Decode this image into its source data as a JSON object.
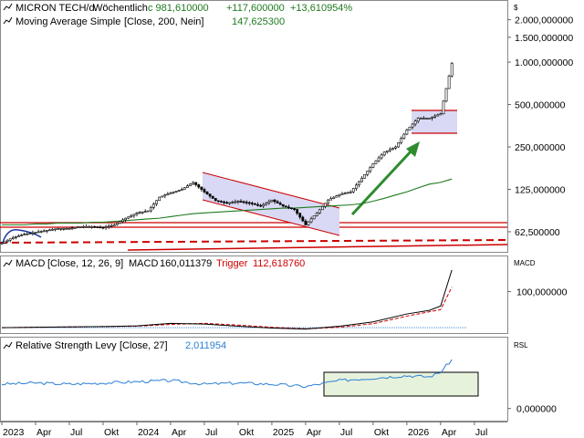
{
  "price_panel": {
    "title": "MICRON TECH/d",
    "interval": "Wöchentlich",
    "close_label": "c 981,610000",
    "change_abs": "+117,600000",
    "change_pct": "+13,610954%",
    "ma_label": "Moving Average Simple",
    "ma_params": "[Close, 200, Nein]",
    "ma_value": "147,625300",
    "axis_unit": "$"
  },
  "macd_panel": {
    "label": "MACD",
    "params": "[Close, 12, 26, 9]",
    "macd_label": "MACD",
    "macd_value": "160,011379",
    "trigger_label": "Trigger",
    "trigger_value": "112,618760",
    "axis_unit": "MACD"
  },
  "rsl_panel": {
    "label": "Relative Strength Levy",
    "params": "[Close, 27]",
    "value": "2,011954",
    "axis_unit": "RSL"
  },
  "x_ticks": [
    "2023",
    "Apr",
    "Jul",
    "Okt",
    "2024",
    "Apr",
    "Jul",
    "Okt",
    "2025",
    "Apr",
    "Jul",
    "Okt",
    "2026",
    "Apr",
    "Jul"
  ],
  "colors": {
    "price": "#000000",
    "ma": "#1e7a1e",
    "macd": "#000000",
    "trigger": "#cc0000",
    "rsl": "#2a7fd4",
    "channel": "#cc0000",
    "arrow": "#2e8b2e",
    "box_fill": "#d9d9f5",
    "rsl_box_fill": "#e6f2dc"
  },
  "chart_data": [
    {
      "type": "line",
      "name": "MICRON TECH weekly close (log scale)",
      "yscale": "log",
      "ylim": [
        45,
        2600
      ],
      "y_ticks": [
        {
          "value": 2000,
          "label": "2.000,000000"
        },
        {
          "value": 1500,
          "label": "1.500,000000"
        },
        {
          "value": 1000,
          "label": "1.000,000000"
        },
        {
          "value": 500,
          "label": "500,000000"
        },
        {
          "value": 250,
          "label": "250,000000"
        },
        {
          "value": 125,
          "label": "125,000000"
        },
        {
          "value": 62.5,
          "label": "62,500000"
        }
      ],
      "x": [
        "2023-01",
        "2023-02",
        "2023-03",
        "2023-04",
        "2023-05",
        "2023-06",
        "2023-07",
        "2023-08",
        "2023-09",
        "2023-10",
        "2023-11",
        "2023-12",
        "2024-01",
        "2024-02",
        "2024-03",
        "2024-04",
        "2024-05",
        "2024-06",
        "2024-07",
        "2024-08",
        "2024-09",
        "2024-10",
        "2024-11",
        "2024-12",
        "2025-01",
        "2025-02",
        "2025-03",
        "2025-04",
        "2025-05",
        "2025-06",
        "2025-07",
        "2025-08",
        "2025-09",
        "2025-10",
        "2025-11",
        "2025-12",
        "2026-01",
        "2026-02",
        "2026-03",
        "2026-04",
        "2026-05"
      ],
      "series": [
        {
          "values": [
            52,
            57,
            60,
            62,
            64,
            66,
            66,
            68,
            68,
            67,
            70,
            78,
            85,
            88,
            110,
            118,
            125,
            140,
            120,
            104,
            100,
            103,
            100,
            95,
            105,
            95,
            90,
            70,
            85,
            105,
            115,
            120,
            150,
            190,
            230,
            250,
            330,
            400,
            400,
            430,
            980
          ]
        },
        {
          "values": [
            70,
            70,
            70,
            71,
            71,
            72,
            72,
            72,
            73,
            73,
            74,
            75,
            76,
            77,
            78,
            80,
            82,
            84,
            85,
            86,
            87,
            88,
            89,
            90,
            91,
            92,
            92,
            93,
            94,
            95,
            96,
            97,
            99,
            103,
            108,
            114,
            120,
            128,
            136,
            140,
            148
          ]
        }
      ]
    },
    {
      "type": "line",
      "name": "MACD",
      "y_ticks": [
        {
          "value": 100,
          "label": "100,000000"
        }
      ],
      "ylim": [
        -15,
        190
      ],
      "x": [
        "2023-01",
        "2023-04",
        "2023-07",
        "2023-10",
        "2024-01",
        "2024-04",
        "2024-07",
        "2024-10",
        "2025-01",
        "2025-04",
        "2025-07",
        "2025-10",
        "2026-01",
        "2026-03",
        "2026-04",
        "2026-05"
      ],
      "series": [
        {
          "values": [
            0,
            1,
            2,
            3,
            5,
            12,
            10,
            4,
            -1,
            -4,
            4,
            16,
            38,
            48,
            60,
            160
          ]
        },
        {
          "values": [
            0,
            1,
            2,
            3,
            4,
            9,
            12,
            7,
            1,
            -3,
            1,
            11,
            32,
            44,
            50,
            112.6
          ]
        }
      ]
    },
    {
      "type": "line",
      "name": "RSL",
      "y_ticks": [
        {
          "value": 0,
          "label": "0,000000"
        }
      ],
      "ylim": [
        -0.5,
        2.8
      ],
      "x": [
        "2023-01",
        "2023-04",
        "2023-07",
        "2023-10",
        "2024-01",
        "2024-04",
        "2024-07",
        "2024-10",
        "2025-01",
        "2025-04",
        "2025-07",
        "2025-10",
        "2026-01",
        "2026-03",
        "2026-04",
        "2026-05"
      ],
      "series": [
        {
          "values": [
            1.0,
            1.05,
            1.0,
            1.05,
            1.1,
            1.15,
            1.0,
            1.05,
            1.0,
            0.9,
            1.15,
            1.25,
            1.35,
            1.3,
            1.5,
            2.01
          ]
        }
      ]
    }
  ]
}
